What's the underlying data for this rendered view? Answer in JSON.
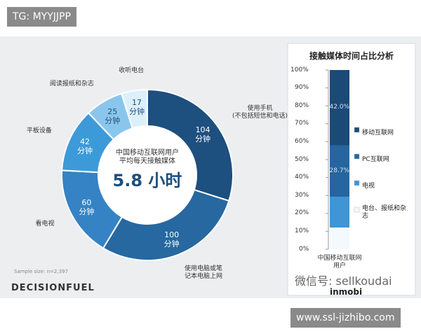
{
  "badges": {
    "top": "TG: MYYJJPP",
    "bottom": "www.ssl-jizhibo.com"
  },
  "footer": {
    "brand": "DECISIONFUEL",
    "sample": "Sample size: n=2,397",
    "wechat": "微信号: sellkoudai",
    "partner": "inmobi"
  },
  "chart_data": [
    {
      "type": "donut",
      "center_text": "中国移动互联网用户\n平均每天接触媒体",
      "center_value": "5.8 小时",
      "categories": [
        "使用手机\n(不包括短信和电话)",
        "使用电脑或笔\n记本电脑上网",
        "看电视",
        "平板设备",
        "阅读报纸和杂志",
        "收听电台"
      ],
      "values": [
        104,
        100,
        60,
        42,
        25,
        17
      ],
      "value_labels": [
        "104\n分钟",
        "100\n分钟",
        "60\n分钟",
        "42\n分钟",
        "25\n分钟",
        "17\n分钟"
      ],
      "colors": [
        "#1d4f7f",
        "#2768a0",
        "#3583c4",
        "#3d9ad8",
        "#8ac6ec",
        "#dcf0fb"
      ]
    },
    {
      "type": "stacked-bar",
      "title": "接触媒体时间占比分析",
      "categories": [
        "中国移动互联网用户"
      ],
      "ylim": [
        0,
        100
      ],
      "yticks": [
        {
          "value": 0,
          "label": "0%"
        },
        {
          "value": 10,
          "label": "10%"
        },
        {
          "value": 20,
          "label": "20%"
        },
        {
          "value": 30,
          "label": "30%"
        },
        {
          "value": 40,
          "label": "40%"
        },
        {
          "value": 50,
          "label": "50%"
        },
        {
          "value": 60,
          "label": "60%"
        },
        {
          "value": 70,
          "label": "70%"
        },
        {
          "value": 80,
          "label": "80%"
        },
        {
          "value": 90,
          "label": "90%"
        },
        {
          "value": 100,
          "label": "100%"
        }
      ],
      "series": [
        {
          "name": "电台、报纸和杂志",
          "color": "#f4f9fd",
          "values": [
            12.1
          ]
        },
        {
          "name": "电视",
          "color": "#3f95d6",
          "values": [
            17.2
          ]
        },
        {
          "name": "PC互联网",
          "color": "#2566a0",
          "values": [
            28.7
          ],
          "value_labels": [
            "28.7%"
          ]
        },
        {
          "name": "移动互联网",
          "color": "#1b4a78",
          "values": [
            42.0
          ],
          "value_labels": [
            "42.0%"
          ]
        }
      ]
    }
  ]
}
